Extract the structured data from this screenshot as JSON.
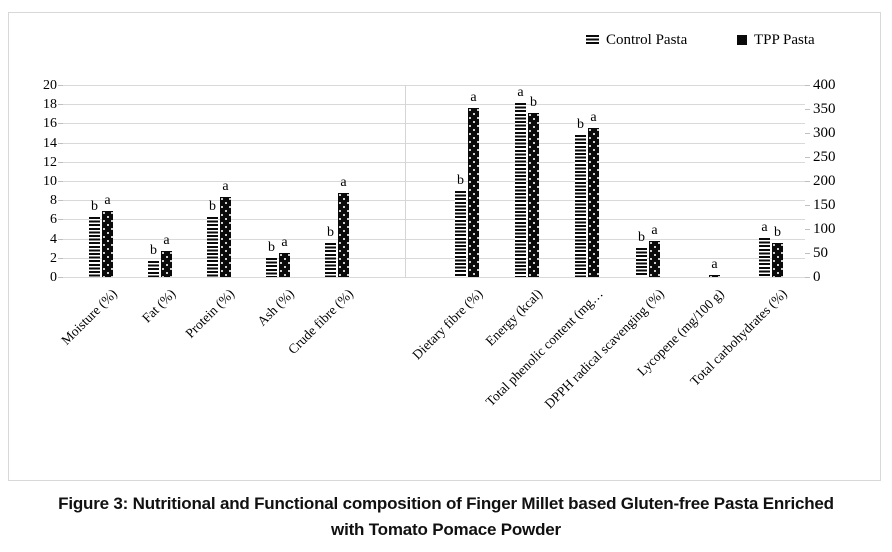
{
  "figure": {
    "caption_line1": "Figure 3: Nutritional and Functional composition of Finger Millet based Gluten-free Pasta Enriched",
    "caption_line2": "with Tomato Pomace Powder"
  },
  "legend": {
    "items": [
      {
        "label": "Control Pasta",
        "marker": "striped"
      },
      {
        "label": "TPP Pasta",
        "marker": "solid-black"
      }
    ]
  },
  "colors": {
    "bar_black": "#0a0a0a",
    "gridline": "#d9d9d9",
    "chart_border": "#d8d8d8",
    "group_separator_line": "#ddd6bd",
    "text": "#000000"
  },
  "chart_data": {
    "type": "bar",
    "title": "",
    "legend_position": "top-right",
    "grid": true,
    "categories": [
      "Moisture (%)",
      "Fat (%)",
      "Protein (%)",
      "Ash (%)",
      "Crude fibre (%)",
      "Dietary fibre (%)",
      "Energy (kcal)",
      "Total phenolic content (mg…",
      "DPPH radical scavenging (%)",
      "Lycopene (mg/100 g)",
      "Total carbohydrates (%)"
    ],
    "category_axis": [
      "left",
      "left",
      "left",
      "left",
      "left",
      "right",
      "right",
      "right",
      "right",
      "right",
      "right"
    ],
    "series": [
      {
        "name": "Control Pasta",
        "pattern": "horizontal-stripes",
        "values": [
          6.2,
          1.7,
          6.2,
          2.0,
          3.5,
          180,
          363,
          295,
          60,
          0,
          81
        ]
      },
      {
        "name": "TPP Pasta",
        "pattern": "black-with-white-dots",
        "values": [
          6.9,
          2.7,
          8.3,
          2.5,
          8.7,
          353,
          342,
          311,
          74,
          5,
          71
        ]
      }
    ],
    "significance_letters": [
      [
        "b",
        "a"
      ],
      [
        "b",
        "a"
      ],
      [
        "b",
        "a"
      ],
      [
        "b",
        "a"
      ],
      [
        "b",
        "a"
      ],
      [
        "b",
        "a"
      ],
      [
        "a",
        "b"
      ],
      [
        "b",
        "a"
      ],
      [
        "b",
        "a"
      ],
      [
        "",
        "a"
      ],
      [
        "a",
        "b"
      ]
    ],
    "left_axis": {
      "min": 0,
      "max": 20,
      "ticks": [
        0,
        2,
        4,
        6,
        8,
        10,
        12,
        14,
        16,
        18,
        20
      ]
    },
    "right_axis": {
      "min": 0,
      "max": 400,
      "ticks": [
        0,
        50,
        100,
        150,
        200,
        250,
        300,
        350,
        400
      ]
    }
  }
}
